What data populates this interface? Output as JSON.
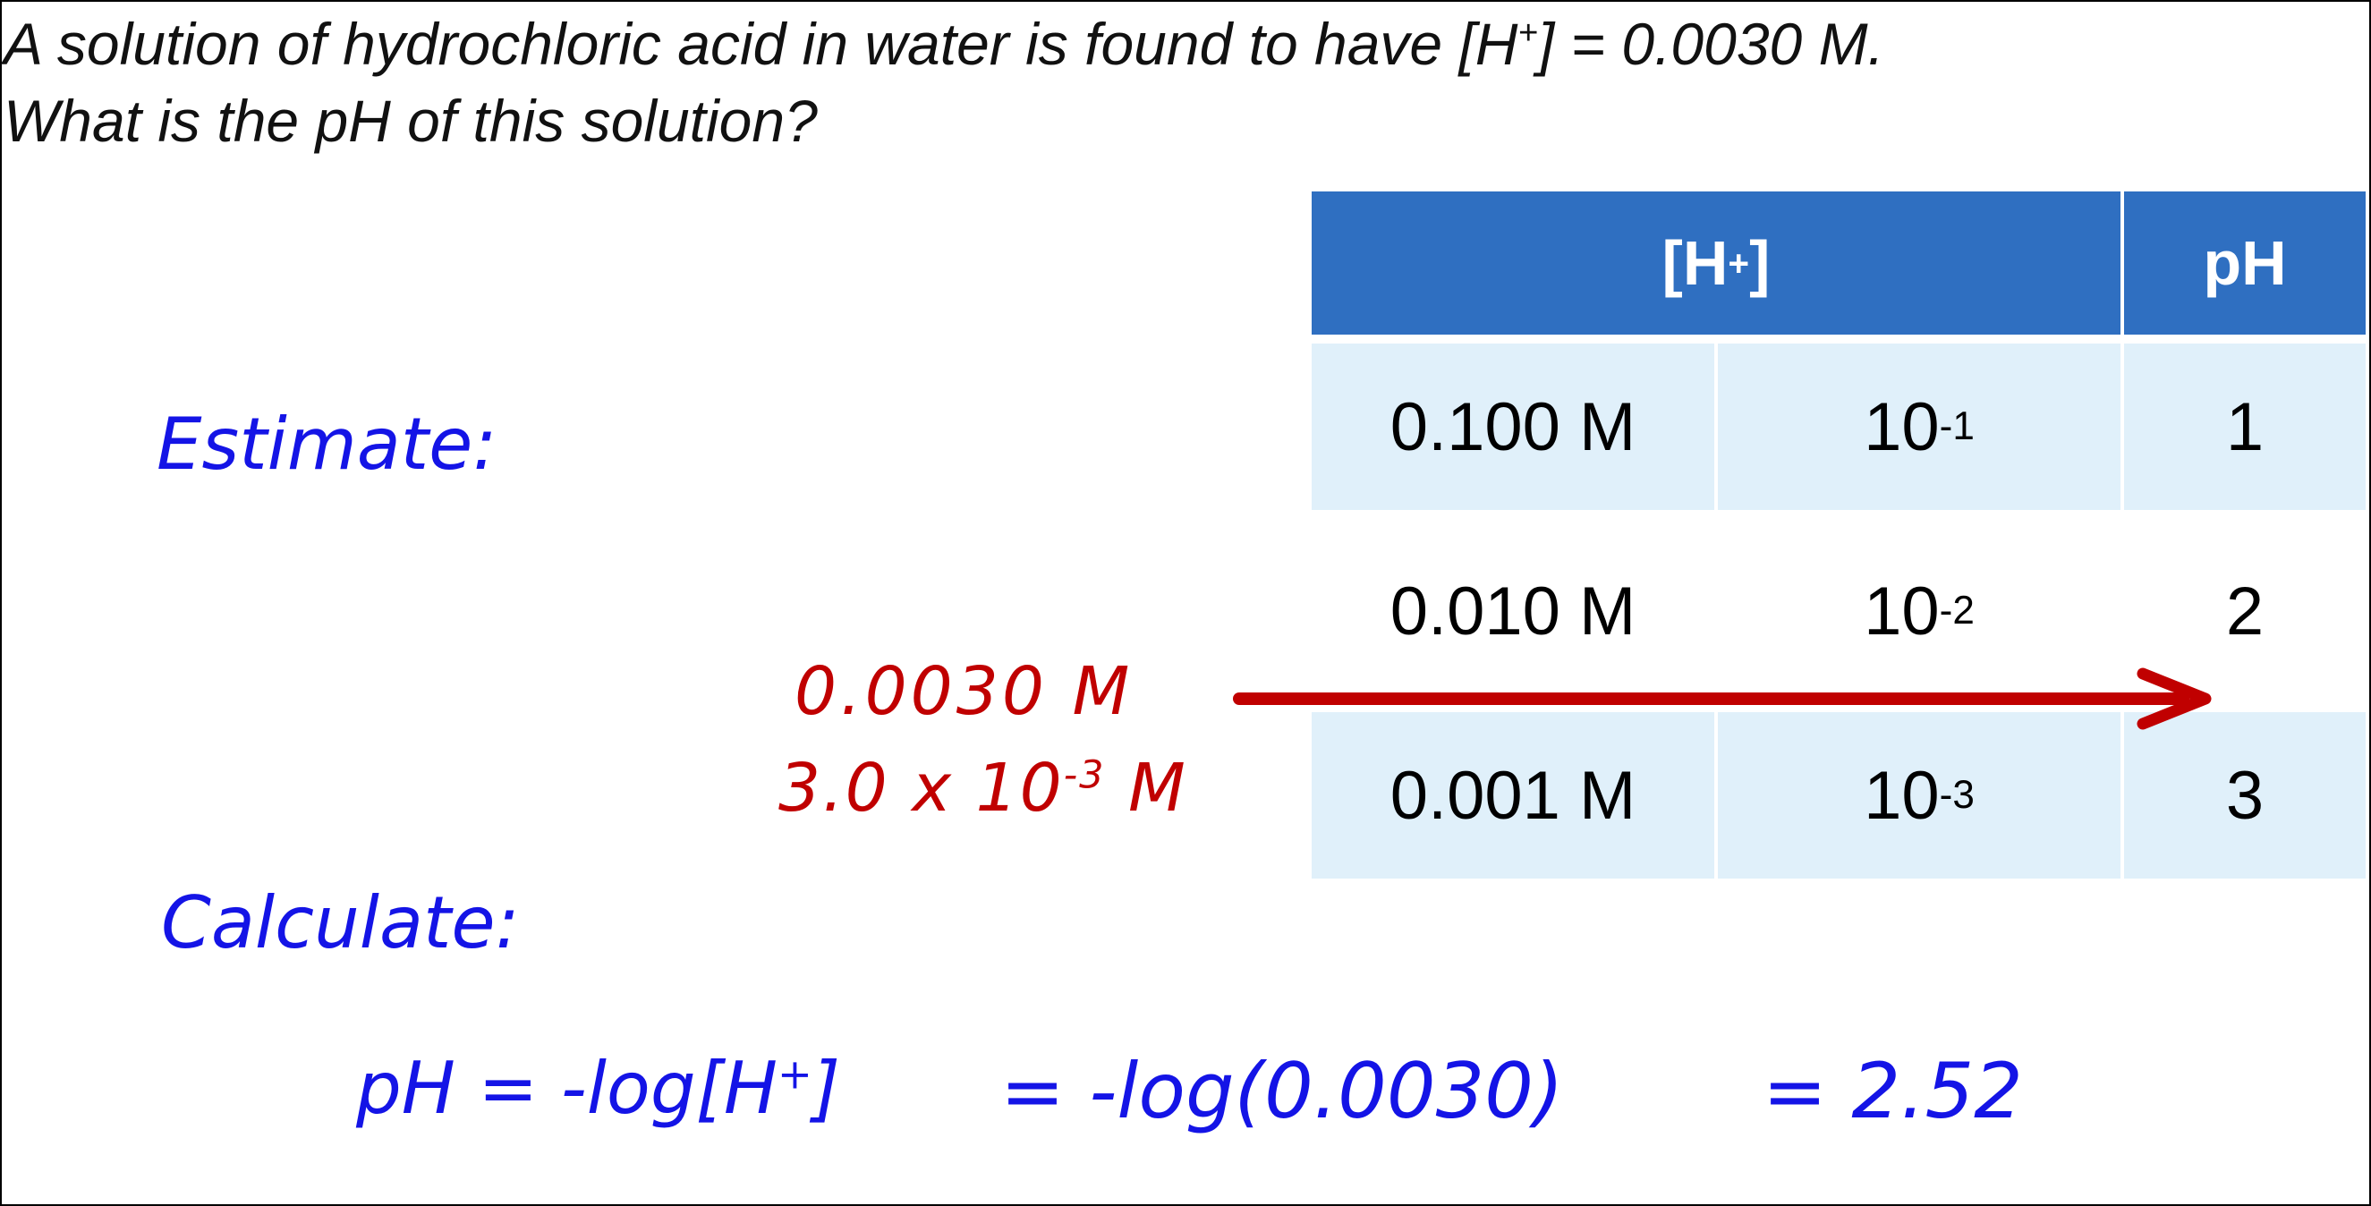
{
  "question": {
    "line1_pre": "A solution of hydrochloric acid in water is found to have [H",
    "line1_sup": "+",
    "line1_post": "] = 0.0030 M.",
    "line2": "What is the pH of this solution?"
  },
  "labels": {
    "estimate": "Estimate:",
    "calculate": "Calculate:"
  },
  "red_notes": {
    "decimal": "0.0030 M",
    "sci_base": "3.0 x 10",
    "sci_exp": "-3",
    "sci_unit": " M"
  },
  "table": {
    "header_h_pre": "[H",
    "header_h_sup": "+",
    "header_h_post": "]",
    "header_ph": "pH",
    "rows": [
      {
        "molar": "0.100 M",
        "base": "10",
        "exp": "-1",
        "ph": "1"
      },
      {
        "molar": "0.010 M",
        "base": "10",
        "exp": "-2",
        "ph": "2"
      },
      {
        "molar": "0.001 M",
        "base": "10",
        "exp": "-3",
        "ph": "3"
      }
    ]
  },
  "formula": {
    "part1_pre": "pH = -log[H",
    "part1_sup": "+",
    "part1_post": "]",
    "part2": "= -log(0.0030)",
    "part3": "= 2.52"
  },
  "colors": {
    "handwriting_blue": "#1414e6",
    "handwriting_red": "#c00000",
    "table_header": "#2f6fc1",
    "table_shade": "#e0f0fa"
  }
}
